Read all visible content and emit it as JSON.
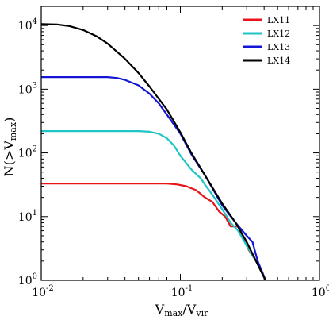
{
  "chart_data": {
    "type": "line",
    "xscale": "log",
    "yscale": "log",
    "xlim": [
      0.01,
      1
    ],
    "ylim": [
      1,
      20000
    ],
    "xlabel": {
      "base": "V",
      "sub1": "max",
      "sep": "/V",
      "sub2": "vir"
    },
    "ylabel": {
      "prefix": "N(>V",
      "sub": "max",
      "suffix": ")"
    },
    "x_ticks": [
      {
        "value": 0.01,
        "base": "10",
        "exp": "-2"
      },
      {
        "value": 0.1,
        "base": "10",
        "exp": "-1"
      },
      {
        "value": 1,
        "base": "10",
        "exp": "0"
      }
    ],
    "y_ticks": [
      {
        "value": 1,
        "base": "10",
        "exp": "0"
      },
      {
        "value": 10,
        "base": "10",
        "exp": "1"
      },
      {
        "value": 100,
        "base": "10",
        "exp": "2"
      },
      {
        "value": 1000,
        "base": "10",
        "exp": "3"
      },
      {
        "value": 10000,
        "base": "10",
        "exp": "4"
      }
    ],
    "legend_position": "top-right",
    "series": [
      {
        "name": "LX11",
        "color": "#e8141a",
        "x": [
          0.01,
          0.08,
          0.095,
          0.11,
          0.13,
          0.15,
          0.17,
          0.19,
          0.21,
          0.23,
          0.26,
          0.28,
          0.31,
          0.35,
          0.38,
          0.41
        ],
        "y": [
          33,
          33,
          32,
          30,
          26,
          20,
          17,
          12,
          10,
          7,
          7,
          5,
          3,
          2,
          1.5,
          1
        ]
      },
      {
        "name": "LX12",
        "color": "#1fc4c4",
        "x": [
          0.01,
          0.05,
          0.06,
          0.07,
          0.08,
          0.09,
          0.1,
          0.12,
          0.14,
          0.15,
          0.17,
          0.2,
          0.23,
          0.26,
          0.3,
          0.35,
          0.4,
          0.41
        ],
        "y": [
          220,
          220,
          215,
          200,
          170,
          130,
          90,
          55,
          40,
          32,
          22,
          13,
          8,
          6,
          3.5,
          2,
          1.1,
          1
        ]
      },
      {
        "name": "LX13",
        "color": "#1515d5",
        "x": [
          0.01,
          0.03,
          0.035,
          0.04,
          0.05,
          0.06,
          0.07,
          0.08,
          0.1,
          0.12,
          0.15,
          0.2,
          0.25,
          0.3,
          0.33,
          0.36,
          0.41
        ],
        "y": [
          1550,
          1550,
          1500,
          1400,
          1150,
          850,
          600,
          400,
          200,
          95,
          45,
          15,
          8,
          5,
          4,
          2,
          1
        ]
      },
      {
        "name": "LX14",
        "color": "#000000",
        "x": [
          0.01,
          0.013,
          0.016,
          0.02,
          0.025,
          0.03,
          0.04,
          0.05,
          0.06,
          0.08,
          0.1,
          0.12,
          0.15,
          0.2,
          0.25,
          0.3,
          0.35,
          0.41
        ],
        "y": [
          10500,
          10400,
          9800,
          8500,
          6800,
          5200,
          3000,
          1800,
          1100,
          480,
          210,
          100,
          45,
          16,
          8,
          4,
          2,
          1
        ]
      }
    ]
  }
}
